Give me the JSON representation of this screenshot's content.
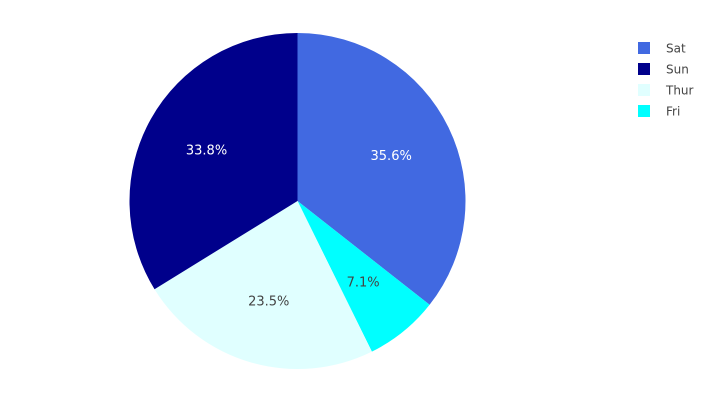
{
  "chart_data": {
    "type": "pie",
    "slices": [
      {
        "label": "Sat",
        "percent": 35.6,
        "percent_label": "35.6%",
        "color": "#4169E1",
        "label_color": "#ffffff"
      },
      {
        "label": "Fri",
        "percent": 7.1,
        "percent_label": "7.1%",
        "color": "#00FFFF",
        "label_color": "#444444"
      },
      {
        "label": "Thur",
        "percent": 23.5,
        "percent_label": "23.5%",
        "color": "#E0FFFF",
        "label_color": "#444444"
      },
      {
        "label": "Sun",
        "percent": 33.8,
        "percent_label": "33.8%",
        "color": "#00008B",
        "label_color": "#ffffff"
      }
    ],
    "direction": "clockwise",
    "start_angle": "top",
    "legend": {
      "position": "top-right",
      "entries": [
        {
          "label": "Sat",
          "color": "#4169E1"
        },
        {
          "label": "Sun",
          "color": "#00008B"
        },
        {
          "label": "Thur",
          "color": "#E0FFFF"
        },
        {
          "label": "Fri",
          "color": "#00FFFF"
        }
      ]
    }
  }
}
